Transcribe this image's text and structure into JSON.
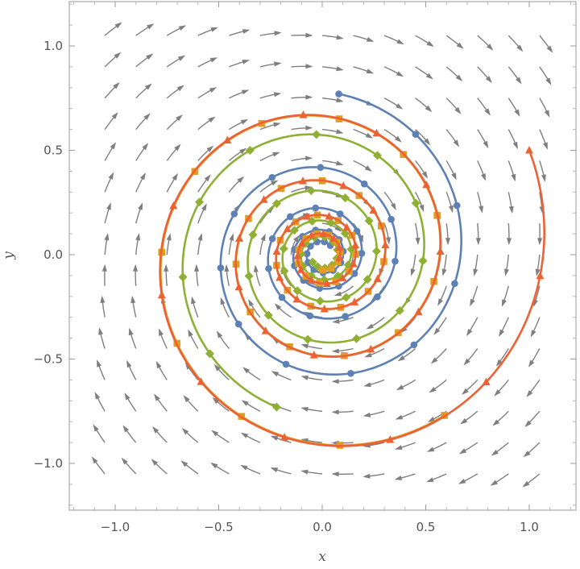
{
  "chart_data": {
    "type": "scatter",
    "subtype": "stream-plot-with-trajectories",
    "xlabel": "x",
    "ylabel": "y",
    "xlim": [
      -1.22,
      1.22
    ],
    "ylim": [
      -1.22,
      1.22
    ],
    "xticks": [
      -1.0,
      -0.5,
      0.0,
      0.5,
      1.0
    ],
    "yticks": [
      -1.0,
      -0.5,
      0.0,
      0.5,
      1.0
    ],
    "xtick_labels": [
      "−1.0",
      "−0.5",
      "0.0",
      "0.5",
      "1.0"
    ],
    "ytick_labels": [
      "−1.0",
      "−0.5",
      "0.0",
      "0.5",
      "1.0"
    ],
    "grid": false,
    "legend": "none",
    "vector_field": {
      "dx": "-0.1*x + 1.0*y",
      "dy": "-1.0*x - 0.1*y",
      "note_color": "#7f7f7f"
    },
    "series": [
      {
        "marker": "circle",
        "color": "#5e81b5",
        "start": [
          0.08,
          0.77
        ],
        "time_steps": 26
      },
      {
        "marker": "diamond",
        "color": "#8fb032",
        "start": [
          -0.22,
          -0.73
        ],
        "time_steps": 26
      },
      {
        "marker": "square",
        "color": "#e19c24",
        "start": [
          0.59,
          -0.77
        ],
        "time_steps": 26
      },
      {
        "marker": "triangle",
        "color": "#eb6235",
        "start": [
          1.0,
          0.5
        ],
        "time_steps": 26
      }
    ]
  }
}
